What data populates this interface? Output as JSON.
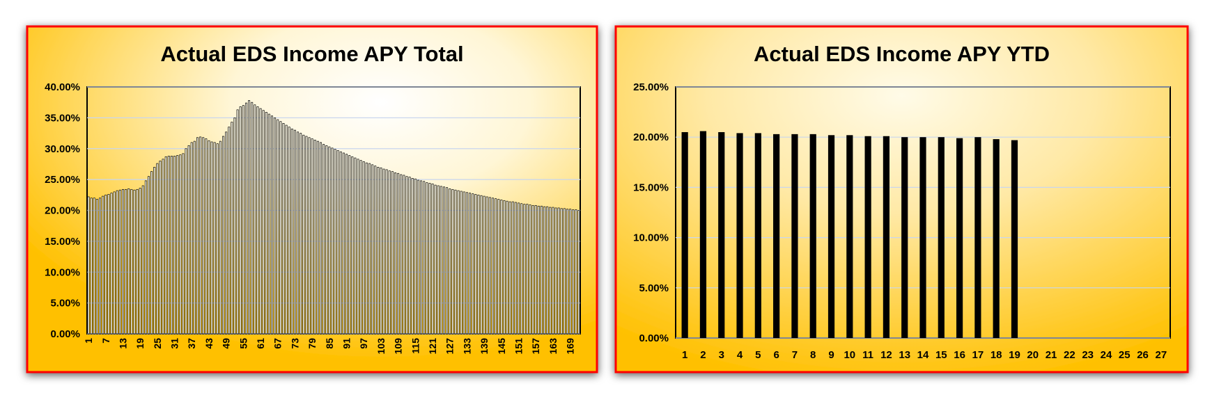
{
  "chart_data": [
    {
      "type": "bar",
      "title": "Actual EDS Income APY Total",
      "categories": [
        "1",
        null,
        null,
        null,
        null,
        null,
        "7",
        null,
        null,
        null,
        null,
        null,
        "13",
        null,
        null,
        null,
        null,
        null,
        "19",
        null,
        null,
        null,
        null,
        null,
        "25",
        null,
        null,
        null,
        null,
        null,
        "31",
        null,
        null,
        null,
        null,
        null,
        "37",
        null,
        null,
        null,
        null,
        null,
        "43",
        null,
        null,
        null,
        null,
        null,
        "49",
        null,
        null,
        null,
        null,
        null,
        "55",
        null,
        null,
        null,
        null,
        null,
        "61",
        null,
        null,
        null,
        null,
        null,
        "67",
        null,
        null,
        null,
        null,
        null,
        "73",
        null,
        null,
        null,
        null,
        null,
        "79",
        null,
        null,
        null,
        null,
        null,
        "85",
        null,
        null,
        null,
        null,
        null,
        "91",
        null,
        null,
        null,
        null,
        null,
        "97",
        null,
        null,
        null,
        null,
        null,
        "103",
        null,
        null,
        null,
        null,
        null,
        "109",
        null,
        null,
        null,
        null,
        null,
        "115",
        null,
        null,
        null,
        null,
        null,
        "121",
        null,
        null,
        null,
        null,
        null,
        "127",
        null,
        null,
        null,
        null,
        null,
        "133",
        null,
        null,
        null,
        null,
        null,
        "139",
        null,
        null,
        null,
        null,
        null,
        "145",
        null,
        null,
        null,
        null,
        null,
        "151",
        null,
        null,
        null,
        null,
        null,
        "157",
        null,
        null,
        null,
        null,
        null,
        "163",
        null,
        null,
        null,
        null,
        null,
        "169",
        null,
        null,
        null
      ],
      "values": [
        22.2,
        22.0,
        22.0,
        21.8,
        22.0,
        22.3,
        22.5,
        22.6,
        22.8,
        23.0,
        23.2,
        23.3,
        23.4,
        23.4,
        23.5,
        23.4,
        23.3,
        23.4,
        23.6,
        24.0,
        24.8,
        25.5,
        26.3,
        27.0,
        27.6,
        28.0,
        28.3,
        28.7,
        28.8,
        28.8,
        28.8,
        28.9,
        29.0,
        29.2,
        30.0,
        30.5,
        31.0,
        31.2,
        31.8,
        31.9,
        31.8,
        31.6,
        31.3,
        31.1,
        31.0,
        30.8,
        31.2,
        32.0,
        32.7,
        33.5,
        34.3,
        35.0,
        36.3,
        36.8,
        37.0,
        37.4,
        37.8,
        37.5,
        37.1,
        36.8,
        36.5,
        36.2,
        35.9,
        35.6,
        35.3,
        35.0,
        34.7,
        34.4,
        34.1,
        33.8,
        33.5,
        33.2,
        33.0,
        32.7,
        32.5,
        32.2,
        32.0,
        31.8,
        31.6,
        31.4,
        31.2,
        31.0,
        30.7,
        30.5,
        30.3,
        30.1,
        29.9,
        29.7,
        29.5,
        29.3,
        29.1,
        28.9,
        28.7,
        28.5,
        28.3,
        28.1,
        27.9,
        27.7,
        27.6,
        27.4,
        27.2,
        27.0,
        26.9,
        26.7,
        26.6,
        26.4,
        26.3,
        26.1,
        26.0,
        25.8,
        25.7,
        25.5,
        25.4,
        25.2,
        25.1,
        24.9,
        24.8,
        24.7,
        24.5,
        24.4,
        24.3,
        24.1,
        24.0,
        23.9,
        23.8,
        23.7,
        23.5,
        23.4,
        23.3,
        23.2,
        23.1,
        23.0,
        22.9,
        22.8,
        22.7,
        22.6,
        22.5,
        22.4,
        22.3,
        22.2,
        22.1,
        22.0,
        21.9,
        21.8,
        21.7,
        21.6,
        21.5,
        21.4,
        21.4,
        21.3,
        21.2,
        21.1,
        21.0,
        21.0,
        20.9,
        20.8,
        20.8,
        20.7,
        20.7,
        20.6,
        20.6,
        20.5,
        20.5,
        20.4,
        20.4,
        20.3,
        20.3,
        20.2,
        20.2,
        20.1,
        20.1,
        20.0
      ],
      "color": "#fffbe8",
      "edgecolor": "#000000",
      "ylim": [
        0,
        40
      ],
      "yticks": [
        {
          "value": 0,
          "label": "0.00%"
        },
        {
          "value": 5,
          "label": "5.00%"
        },
        {
          "value": 10,
          "label": "10.00%"
        },
        {
          "value": 15,
          "label": "15.00%"
        },
        {
          "value": 20,
          "label": "20.00%"
        },
        {
          "value": 25,
          "label": "25.00%"
        },
        {
          "value": 30,
          "label": "30.00%"
        },
        {
          "value": 35,
          "label": "35.00%"
        },
        {
          "value": 40,
          "label": "40.00%"
        }
      ],
      "grid": true
    },
    {
      "type": "bar",
      "title": "Actual EDS Income APY YTD",
      "categories": [
        "1",
        "2",
        "3",
        "4",
        "5",
        "6",
        "7",
        "8",
        "9",
        "10",
        "11",
        "12",
        "13",
        "14",
        "15",
        "16",
        "17",
        "18",
        "19",
        "20",
        "21",
        "22",
        "23",
        "24",
        "25",
        "26",
        "27"
      ],
      "values": [
        20.5,
        20.6,
        20.5,
        20.4,
        20.4,
        20.3,
        20.3,
        20.3,
        20.2,
        20.2,
        20.1,
        20.1,
        20.0,
        20.0,
        20.0,
        19.9,
        20.0,
        19.8,
        19.7,
        null,
        null,
        null,
        null,
        null,
        null,
        null,
        null
      ],
      "color": "#000000",
      "edgecolor": "#000000",
      "ylim": [
        0,
        25
      ],
      "yticks": [
        {
          "value": 0,
          "label": "0.00%"
        },
        {
          "value": 5,
          "label": "5.00%"
        },
        {
          "value": 10,
          "label": "10.00%"
        },
        {
          "value": 15,
          "label": "15.00%"
        },
        {
          "value": 20,
          "label": "20.00%"
        },
        {
          "value": 25,
          "label": "25.00%"
        }
      ],
      "grid": true
    }
  ]
}
